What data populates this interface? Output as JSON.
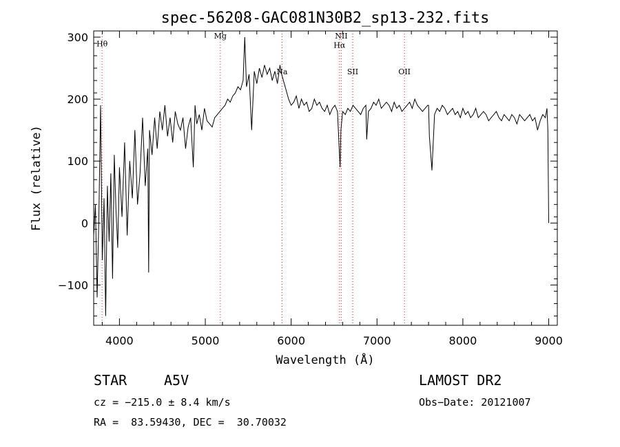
{
  "chart_data": {
    "type": "line",
    "title": "spec-56208-GAC081N30B2_sp13-232.fits",
    "xlabel": "Wavelength (Å)",
    "ylabel": "Flux (relative)",
    "xlim": [
      3700,
      9100
    ],
    "ylim": [
      -165,
      310
    ],
    "xticks": [
      4000,
      5000,
      6000,
      7000,
      8000,
      9000
    ],
    "yticks": [
      -100,
      0,
      100,
      200,
      300
    ],
    "grid": false,
    "series": [
      {
        "x": [
          3700,
          3720,
          3740,
          3760,
          3780,
          3800,
          3820,
          3840,
          3860,
          3880,
          3900,
          3920,
          3940,
          3960,
          3980,
          4000,
          4030,
          4060,
          4090,
          4120,
          4150,
          4180,
          4210,
          4240,
          4270,
          4300,
          4330,
          4340,
          4350,
          4380,
          4410,
          4440,
          4470,
          4500,
          4530,
          4560,
          4590,
          4620,
          4650,
          4680,
          4710,
          4740,
          4770,
          4800,
          4830,
          4860,
          4880,
          4900,
          4930,
          4960,
          4990,
          5020,
          5050,
          5080,
          5110,
          5140,
          5170,
          5200,
          5230,
          5260,
          5290,
          5320,
          5350,
          5380,
          5410,
          5440,
          5460,
          5480,
          5510,
          5540,
          5570,
          5600,
          5630,
          5660,
          5690,
          5720,
          5750,
          5780,
          5810,
          5840,
          5870,
          5890,
          5910,
          5940,
          5970,
          6000,
          6030,
          6060,
          6090,
          6120,
          6150,
          6180,
          6210,
          6240,
          6270,
          6300,
          6330,
          6360,
          6390,
          6420,
          6450,
          6480,
          6510,
          6540,
          6560,
          6570,
          6580,
          6600,
          6630,
          6660,
          6690,
          6720,
          6750,
          6780,
          6810,
          6840,
          6870,
          6880,
          6900,
          6930,
          6960,
          6990,
          7020,
          7050,
          7080,
          7110,
          7140,
          7170,
          7200,
          7230,
          7260,
          7290,
          7320,
          7350,
          7380,
          7410,
          7440,
          7470,
          7500,
          7530,
          7560,
          7590,
          7600,
          7610,
          7640,
          7670,
          7700,
          7730,
          7760,
          7790,
          7820,
          7850,
          7880,
          7910,
          7940,
          7970,
          8000,
          8030,
          8060,
          8090,
          8120,
          8150,
          8180,
          8210,
          8240,
          8270,
          8300,
          8330,
          8360,
          8390,
          8420,
          8450,
          8480,
          8510,
          8540,
          8570,
          8600,
          8630,
          8660,
          8690,
          8720,
          8750,
          8780,
          8810,
          8840,
          8870,
          8900,
          8930,
          8960,
          8980,
          8990,
          9000
        ],
        "y": [
          -20,
          30,
          -120,
          10,
          190,
          -60,
          40,
          -150,
          60,
          -30,
          80,
          -90,
          110,
          20,
          -40,
          90,
          10,
          130,
          -20,
          100,
          40,
          150,
          30,
          80,
          170,
          60,
          120,
          -80,
          150,
          110,
          170,
          120,
          180,
          150,
          190,
          140,
          170,
          130,
          180,
          160,
          150,
          170,
          120,
          155,
          170,
          90,
          190,
          160,
          175,
          150,
          185,
          165,
          160,
          155,
          170,
          175,
          180,
          185,
          190,
          200,
          195,
          205,
          210,
          220,
          215,
          230,
          300,
          220,
          240,
          150,
          245,
          225,
          250,
          235,
          255,
          240,
          250,
          230,
          245,
          225,
          255,
          240,
          230,
          215,
          200,
          190,
          195,
          205,
          185,
          200,
          190,
          195,
          180,
          185,
          200,
          190,
          195,
          185,
          180,
          190,
          175,
          185,
          190,
          180,
          120,
          90,
          150,
          180,
          175,
          185,
          180,
          190,
          185,
          180,
          175,
          185,
          190,
          135,
          180,
          185,
          195,
          190,
          200,
          185,
          190,
          195,
          190,
          180,
          195,
          185,
          190,
          180,
          185,
          190,
          195,
          185,
          200,
          190,
          185,
          180,
          185,
          190,
          190,
          140,
          85,
          175,
          185,
          180,
          190,
          185,
          175,
          180,
          185,
          175,
          180,
          170,
          185,
          175,
          180,
          170,
          175,
          185,
          170,
          175,
          180,
          175,
          165,
          170,
          175,
          180,
          170,
          165,
          175,
          170,
          165,
          175,
          170,
          160,
          175,
          170,
          165,
          170,
          175,
          165,
          170,
          150,
          165,
          175,
          170,
          185,
          150,
          0
        ]
      }
    ],
    "emission_lines": [
      {
        "label": "Hθ",
        "x": 3798,
        "label_y": 285
      },
      {
        "label": "Mg",
        "x": 5175,
        "label_y": 298
      },
      {
        "label": "Na",
        "x": 5893,
        "label_y": 240
      },
      {
        "label": "NII",
        "x": 6584,
        "label_y": 298
      },
      {
        "label": "Hα",
        "x": 6563,
        "label_y": 283
      },
      {
        "label": "SII",
        "x": 6717,
        "label_y": 240
      },
      {
        "label": "OII",
        "x": 7320,
        "label_y": 240
      }
    ]
  },
  "info": {
    "class": "STAR",
    "subclass": "A5V",
    "survey": "LAMOST DR2",
    "cz": "cz = −215.0 ± 8.4 km/s",
    "obs_date": "Obs−Date: 20121007",
    "coords": "RA =  83.59430, DEC =  30.70032"
  }
}
